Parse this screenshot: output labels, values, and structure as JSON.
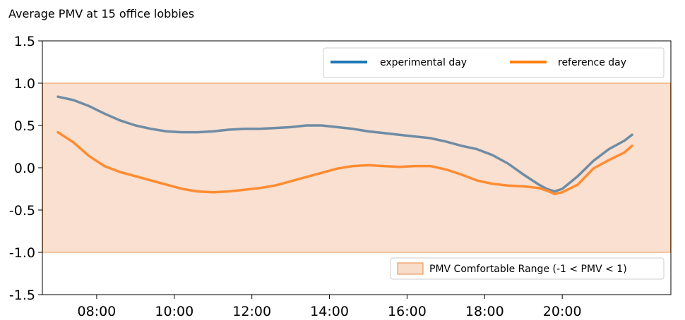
{
  "chart_data": {
    "type": "line",
    "title": "Average PMV at 15 office lobbies",
    "xlabel": "",
    "ylabel": "",
    "xlim": [
      6.6,
      22.8
    ],
    "ylim": [
      -1.5,
      1.5
    ],
    "x_ticks": [
      8,
      10,
      12,
      14,
      16,
      18,
      20
    ],
    "x_tick_labels": [
      "08:00",
      "10:00",
      "12:00",
      "14:00",
      "16:00",
      "18:00",
      "20:00"
    ],
    "y_ticks": [
      1.5,
      1.0,
      0.5,
      0.0,
      -0.5,
      -1.0,
      -1.5
    ],
    "y_tick_labels": [
      "1.5",
      "1.0",
      "0.5",
      "0.0",
      "-0.5",
      "-1.0",
      "-1.5"
    ],
    "grid": false,
    "comfort_band": {
      "label": "PMV Comfortable Range (-1 < PMV < 1)",
      "y_min": -1.0,
      "y_max": 1.0,
      "fill": "#f9ddcb",
      "stroke": "#e8893f"
    },
    "x": [
      7.0,
      7.4,
      7.8,
      8.2,
      8.6,
      9.0,
      9.4,
      9.8,
      10.2,
      10.6,
      11.0,
      11.4,
      11.8,
      12.2,
      12.6,
      13.0,
      13.4,
      13.8,
      14.2,
      14.6,
      15.0,
      15.4,
      15.8,
      16.2,
      16.6,
      17.0,
      17.4,
      17.8,
      18.2,
      18.6,
      19.0,
      19.4,
      19.6,
      19.8,
      20.0,
      20.4,
      20.8,
      21.2,
      21.6,
      21.8
    ],
    "series": [
      {
        "name": "experimental day",
        "legend_color": "#1f77b4",
        "line_color": "#6f8ca4",
        "values": [
          0.84,
          0.8,
          0.73,
          0.64,
          0.56,
          0.5,
          0.46,
          0.43,
          0.42,
          0.42,
          0.43,
          0.45,
          0.46,
          0.46,
          0.47,
          0.48,
          0.5,
          0.5,
          0.48,
          0.46,
          0.43,
          0.41,
          0.39,
          0.37,
          0.35,
          0.31,
          0.26,
          0.22,
          0.15,
          0.05,
          -0.08,
          -0.2,
          -0.25,
          -0.28,
          -0.25,
          -0.1,
          0.08,
          0.22,
          0.32,
          0.39
        ]
      },
      {
        "name": "reference day",
        "legend_color": "#ff7f0e",
        "line_color": "#ff8c32",
        "values": [
          0.42,
          0.3,
          0.14,
          0.02,
          -0.05,
          -0.1,
          -0.15,
          -0.2,
          -0.25,
          -0.28,
          -0.29,
          -0.28,
          -0.26,
          -0.24,
          -0.21,
          -0.16,
          -0.11,
          -0.06,
          -0.01,
          0.02,
          0.03,
          0.02,
          0.01,
          0.02,
          0.02,
          -0.02,
          -0.08,
          -0.15,
          -0.19,
          -0.21,
          -0.22,
          -0.24,
          -0.27,
          -0.31,
          -0.29,
          -0.2,
          -0.01,
          0.09,
          0.18,
          0.26
        ]
      }
    ],
    "legend": {
      "placement": "top-right"
    }
  }
}
